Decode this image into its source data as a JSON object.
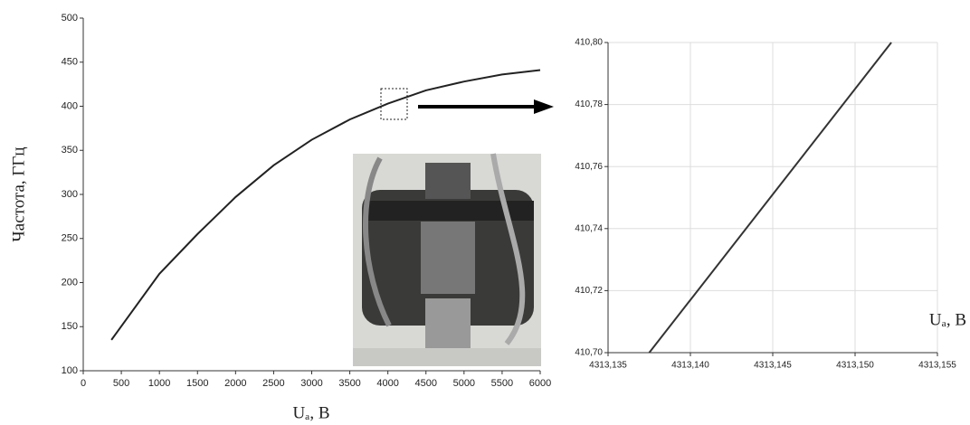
{
  "chart_data": [
    {
      "type": "line",
      "ylabel": "Частота, ГГц",
      "xlabel": "Uₐ, В",
      "x": [
        370,
        1000,
        1500,
        2000,
        2500,
        3000,
        3500,
        4000,
        4500,
        5000,
        5500,
        6000
      ],
      "values": [
        135,
        210,
        255,
        297,
        333,
        362,
        385,
        403,
        418,
        428,
        436,
        441
      ],
      "color": "#222222",
      "xlim": [
        0,
        6000
      ],
      "ylim": [
        100,
        500
      ],
      "xticks": [
        0,
        500,
        1000,
        1500,
        2000,
        2500,
        3000,
        3500,
        4000,
        4500,
        5000,
        5500,
        6000
      ],
      "yticks": [
        100,
        150,
        200,
        250,
        300,
        350,
        400,
        450,
        500
      ],
      "grid": false
    },
    {
      "type": "line",
      "xlabel": "Uₐ, В",
      "x": [
        4313.1375,
        4313.1522
      ],
      "values": [
        410.7,
        410.8
      ],
      "color": "#333333",
      "xlim": [
        4313.135,
        4313.155
      ],
      "ylim": [
        410.7,
        410.8
      ],
      "xticks": [
        {
          "value": 4313.135,
          "label": "4313,135"
        },
        {
          "value": 4313.14,
          "label": "4313,140"
        },
        {
          "value": 4313.145,
          "label": "4313,145"
        },
        {
          "value": 4313.15,
          "label": "4313,150"
        },
        {
          "value": 4313.155,
          "label": "4313,155"
        }
      ],
      "yticks": [
        {
          "value": 410.7,
          "label": "410,70"
        },
        {
          "value": 410.72,
          "label": "410,72"
        },
        {
          "value": 410.74,
          "label": "410,74"
        },
        {
          "value": 410.76,
          "label": "410,76"
        },
        {
          "value": 410.78,
          "label": "410,78"
        },
        {
          "value": 410.8,
          "label": "410,80"
        }
      ],
      "grid": true
    }
  ]
}
